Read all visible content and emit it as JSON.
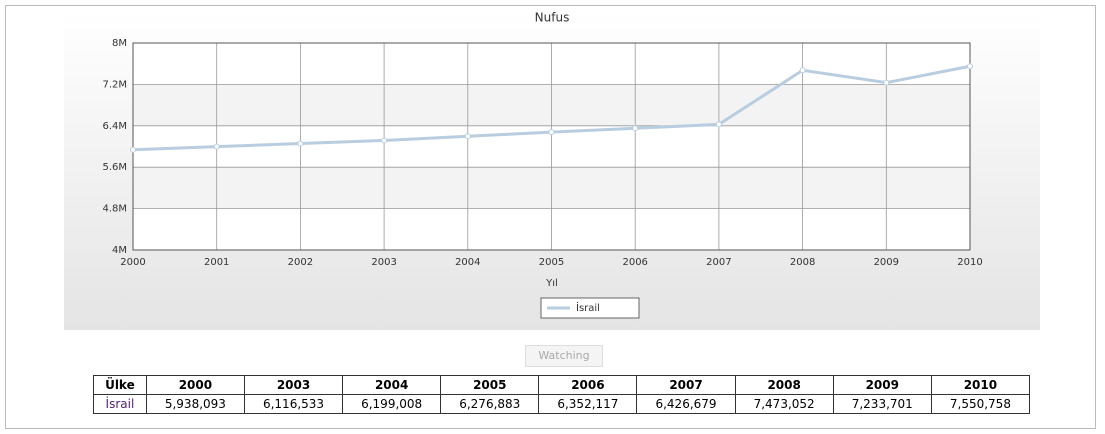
{
  "chart_data": {
    "type": "line",
    "title": "Nufus",
    "x_label": "Yıl",
    "x": [
      2000,
      2001,
      2002,
      2003,
      2004,
      2005,
      2006,
      2007,
      2008,
      2009,
      2010
    ],
    "series": [
      {
        "name": "İsrail",
        "color": "#b9cde0",
        "values": [
          5938093,
          5998000,
          6057000,
          6116533,
          6199008,
          6276883,
          6352117,
          6426679,
          7473052,
          7233701,
          7550758
        ]
      }
    ],
    "xlim": [
      2000,
      2010
    ],
    "xticks": [
      2000,
      2001,
      2002,
      2003,
      2004,
      2005,
      2006,
      2007,
      2008,
      2009,
      2010
    ],
    "ylim": [
      4000000,
      8000000
    ],
    "yticks": [
      {
        "value": 4000000,
        "label": "4M"
      },
      {
        "value": 4800000,
        "label": "4.8M"
      },
      {
        "value": 5600000,
        "label": "5.6M"
      },
      {
        "value": 6400000,
        "label": "6.4M"
      },
      {
        "value": 7200000,
        "label": "7.2M"
      },
      {
        "value": 8000000,
        "label": "8M"
      }
    ],
    "grid": true
  },
  "button": {
    "label": "Watching"
  },
  "table": {
    "header": [
      "Ülke",
      "2000",
      "2003",
      "2004",
      "2005",
      "2006",
      "2007",
      "2008",
      "2009",
      "2010"
    ],
    "rows": [
      [
        "İsrail",
        "5,938,093",
        "6,116,533",
        "6,199,008",
        "6,276,883",
        "6,352,117",
        "6,426,679",
        "7,473,052",
        "7,233,701",
        "7,550,758"
      ]
    ]
  }
}
